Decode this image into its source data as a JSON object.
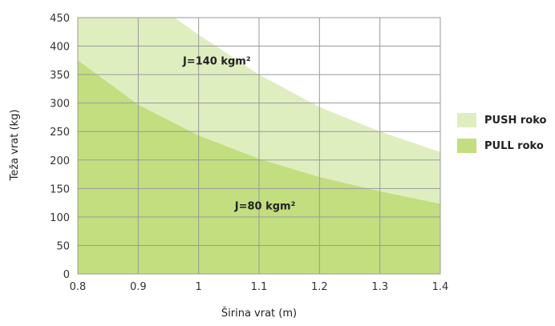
{
  "chart_data": {
    "type": "area",
    "xlabel": "Širina vrat (m)",
    "ylabel": "Teža vrat (kg)",
    "xlim": [
      0.8,
      1.4
    ],
    "ylim": [
      0,
      450
    ],
    "x_ticks": [
      "0.8",
      "0.9",
      "1",
      "1.1",
      "1.2",
      "1.3",
      "1.4"
    ],
    "y_ticks": [
      "0",
      "50",
      "100",
      "150",
      "200",
      "250",
      "300",
      "350",
      "400",
      "450"
    ],
    "grid": true,
    "legend_position": "right",
    "series": [
      {
        "name": "PUSH roko",
        "color": "#dfeebf",
        "x": [
          0.8,
          0.9,
          0.96,
          1.0,
          1.1,
          1.2,
          1.3,
          1.4
        ],
        "y": [
          450,
          450,
          450,
          420,
          350,
          293,
          250,
          214
        ]
      },
      {
        "name": "PULL roko",
        "color": "#c2de7e",
        "x": [
          0.8,
          0.9,
          1.0,
          1.1,
          1.2,
          1.3,
          1.4
        ],
        "y": [
          375,
          297,
          243,
          202,
          170,
          145,
          123
        ]
      }
    ],
    "annotations": [
      {
        "text": "J=140 kgm²",
        "x": 1.03,
        "y": 375
      },
      {
        "text": "J=80 kgm²",
        "x": 1.11,
        "y": 120
      }
    ]
  }
}
